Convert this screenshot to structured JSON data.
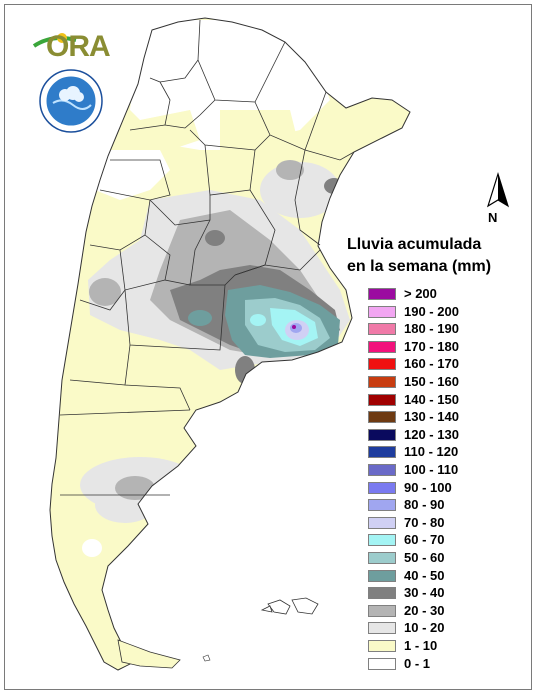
{
  "legend": {
    "title_line1": "Lluvia acumulada",
    "title_line2": "en la semana (mm)",
    "items": [
      {
        "label": "> 200",
        "color": "#9b0ba0"
      },
      {
        "label": "190 - 200",
        "color": "#f2a6f2"
      },
      {
        "label": "180 - 190",
        "color": "#f07aa8"
      },
      {
        "label": "170 - 180",
        "color": "#f2127c"
      },
      {
        "label": "160 - 170",
        "color": "#f01010"
      },
      {
        "label": "150 - 160",
        "color": "#c83c10"
      },
      {
        "label": "140 - 150",
        "color": "#a00000"
      },
      {
        "label": "130 - 140",
        "color": "#6e3a12"
      },
      {
        "label": "120 - 130",
        "color": "#0a0a5e"
      },
      {
        "label": "110 - 120",
        "color": "#1e3c9e"
      },
      {
        "label": "100 - 110",
        "color": "#6a6ac8"
      },
      {
        "label": "90 - 100",
        "color": "#7a7af0"
      },
      {
        "label": "80 - 90",
        "color": "#a0a6f0"
      },
      {
        "label": "70 - 80",
        "color": "#d0d0f4"
      },
      {
        "label": "60 - 70",
        "color": "#a4f4f4"
      },
      {
        "label": "50 - 60",
        "color": "#9ccccc"
      },
      {
        "label": "40 - 50",
        "color": "#6e9e9e"
      },
      {
        "label": "30 - 40",
        "color": "#808080"
      },
      {
        "label": "20 - 30",
        "color": "#b4b4b4"
      },
      {
        "label": "10 - 20",
        "color": "#e6e6e6"
      },
      {
        "label": "1 - 10",
        "color": "#fafac8"
      },
      {
        "label": "0 - 1",
        "color": "#ffffff"
      }
    ]
  },
  "logos": {
    "ora_text": "ORA",
    "seal_name": "servicio-meteorologico-nacional-seal"
  },
  "north_arrow": {
    "label": "N"
  },
  "colors": {
    "background": "#ffffff",
    "border": "#333333",
    "frame": "#7a7a7a"
  }
}
